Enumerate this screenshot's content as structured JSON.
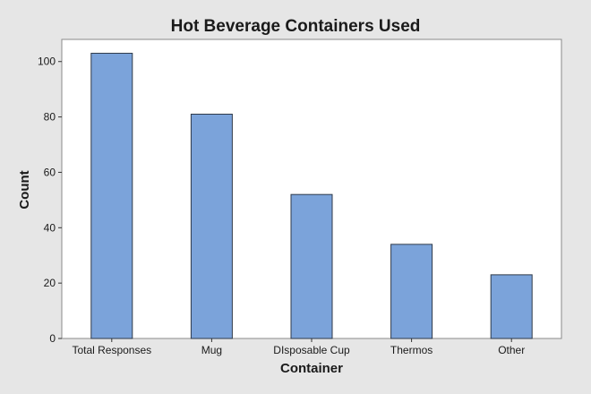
{
  "chart_data": {
    "type": "bar",
    "title": "Hot Beverage Containers Used",
    "xlabel": "Container",
    "ylabel": "Count",
    "categories": [
      "Total Responses",
      "Mug",
      "DIsposable Cup",
      "Thermos",
      "Other"
    ],
    "values": [
      103,
      81,
      52,
      34,
      23
    ],
    "ylim": [
      0,
      108
    ],
    "yticks": [
      0,
      20,
      40,
      60,
      80,
      100
    ],
    "grid": false,
    "legend": "none",
    "colors": {
      "bar": "#7ba3da",
      "bar_outline": "#2f3a4a",
      "background": "#e6e6e6",
      "plot_background": "#ffffff"
    }
  }
}
